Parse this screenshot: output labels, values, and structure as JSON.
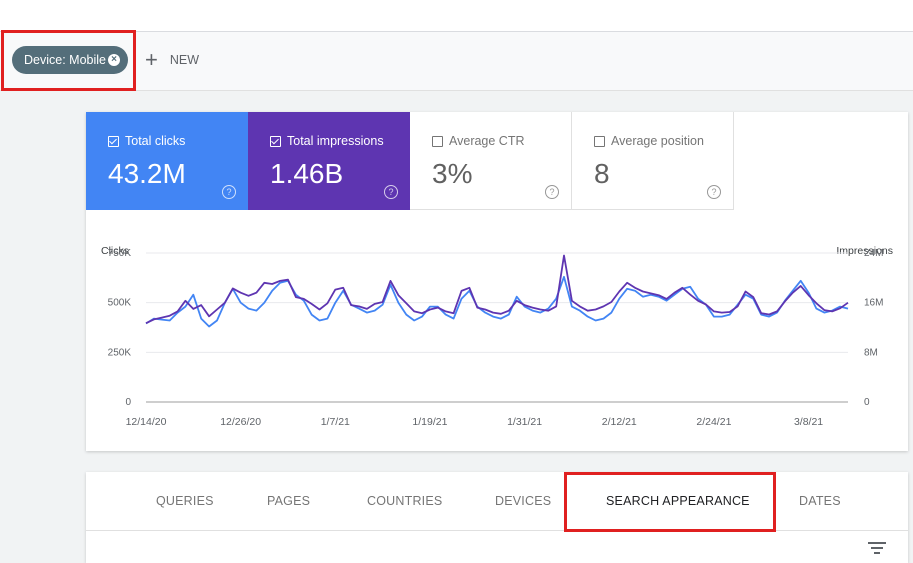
{
  "filter_chip": {
    "label": "Device: Mobile"
  },
  "new_button": {
    "label": "NEW"
  },
  "metrics": [
    {
      "label": "Total clicks",
      "value": "43.2M",
      "checked": true
    },
    {
      "label": "Total impressions",
      "value": "1.46B",
      "checked": true
    },
    {
      "label": "Average CTR",
      "value": "3%",
      "checked": false
    },
    {
      "label": "Average position",
      "value": "8",
      "checked": false
    }
  ],
  "colors": {
    "clicks": "#4285f4",
    "impressions": "#5e35b1",
    "highlight": "#e02020",
    "chip": "#546e7a"
  },
  "chart_data": {
    "type": "line",
    "left_axis": {
      "title": "Clicks",
      "ticks": [
        "750K",
        "500K",
        "250K",
        "0"
      ],
      "range": [
        0,
        750000
      ]
    },
    "right_axis": {
      "title": "Impressions",
      "ticks": [
        "24M",
        "16M",
        "8M",
        "0"
      ],
      "range": [
        0,
        24000000
      ]
    },
    "x_labels": [
      "12/14/20",
      "12/26/20",
      "1/7/21",
      "1/19/21",
      "1/31/21",
      "2/12/21",
      "2/24/21",
      "3/8/21"
    ],
    "x": [
      "12/14/20",
      "12/15/20",
      "12/16/20",
      "12/17/20",
      "12/18/20",
      "12/19/20",
      "12/20/20",
      "12/21/20",
      "12/22/20",
      "12/23/20",
      "12/24/20",
      "12/25/20",
      "12/26/20",
      "12/27/20",
      "12/28/20",
      "12/29/20",
      "12/30/20",
      "12/31/20",
      "1/1/21",
      "1/2/21",
      "1/3/21",
      "1/4/21",
      "1/5/21",
      "1/6/21",
      "1/7/21",
      "1/8/21",
      "1/9/21",
      "1/10/21",
      "1/11/21",
      "1/12/21",
      "1/13/21",
      "1/14/21",
      "1/15/21",
      "1/16/21",
      "1/17/21",
      "1/18/21",
      "1/19/21",
      "1/20/21",
      "1/21/21",
      "1/22/21",
      "1/23/21",
      "1/24/21",
      "1/25/21",
      "1/26/21",
      "1/27/21",
      "1/28/21",
      "1/29/21",
      "1/30/21",
      "1/31/21",
      "2/1/21",
      "2/2/21",
      "2/3/21",
      "2/4/21",
      "2/5/21",
      "2/6/21",
      "2/7/21",
      "2/8/21",
      "2/9/21",
      "2/10/21",
      "2/11/21",
      "2/12/21",
      "2/13/21",
      "2/14/21",
      "2/15/21",
      "2/16/21",
      "2/17/21",
      "2/18/21",
      "2/19/21",
      "2/20/21",
      "2/21/21",
      "2/22/21",
      "2/23/21",
      "2/24/21",
      "2/25/21",
      "2/26/21",
      "2/27/21",
      "2/28/21",
      "3/1/21",
      "3/2/21",
      "3/3/21",
      "3/4/21",
      "3/5/21",
      "3/6/21",
      "3/7/21",
      "3/8/21",
      "3/9/21",
      "3/10/21",
      "3/11/21",
      "3/12/21",
      "3/13/21"
    ],
    "series": [
      {
        "name": "Total clicks",
        "axis": "left",
        "values": [
          395000,
          420000,
          415000,
          410000,
          450000,
          480000,
          540000,
          420000,
          380000,
          410000,
          500000,
          570000,
          500000,
          470000,
          460000,
          500000,
          560000,
          600000,
          610000,
          540000,
          510000,
          440000,
          410000,
          420000,
          500000,
          560000,
          490000,
          470000,
          450000,
          460000,
          490000,
          590000,
          500000,
          440000,
          410000,
          430000,
          480000,
          480000,
          440000,
          420000,
          520000,
          560000,
          480000,
          450000,
          430000,
          420000,
          440000,
          530000,
          480000,
          460000,
          450000,
          470000,
          520000,
          630000,
          480000,
          460000,
          430000,
          410000,
          420000,
          450000,
          520000,
          570000,
          560000,
          530000,
          540000,
          530000,
          510000,
          540000,
          570000,
          580000,
          520000,
          490000,
          430000,
          430000,
          440000,
          490000,
          540000,
          520000,
          440000,
          430000,
          450000,
          510000,
          560000,
          610000,
          550000,
          470000,
          450000,
          460000,
          480000,
          470000
        ]
      },
      {
        "name": "Total impressions",
        "axis": "right",
        "values": [
          12700000,
          13300000,
          13600000,
          13900000,
          14600000,
          16300000,
          15000000,
          15600000,
          13800000,
          14900000,
          16000000,
          18300000,
          17600000,
          17100000,
          17600000,
          19200000,
          19000000,
          19500000,
          19700000,
          16900000,
          16600000,
          15800000,
          14900000,
          15900000,
          18100000,
          18400000,
          15600000,
          15400000,
          15000000,
          15800000,
          16100000,
          19500000,
          17200000,
          15900000,
          14600000,
          14300000,
          14900000,
          15200000,
          14600000,
          14300000,
          17900000,
          18400000,
          15200000,
          14900000,
          14400000,
          14200000,
          14700000,
          16300000,
          15600000,
          15200000,
          14900000,
          14700000,
          15400000,
          23600000,
          16300000,
          15400000,
          14700000,
          14900000,
          15400000,
          16100000,
          17800000,
          19200000,
          18400000,
          17800000,
          17500000,
          17200000,
          16600000,
          17600000,
          18400000,
          17300000,
          16300000,
          15700000,
          14600000,
          14400000,
          14500000,
          15400000,
          17800000,
          16900000,
          14300000,
          14100000,
          14600000,
          16200000,
          17600000,
          18700000,
          17200000,
          15900000,
          14800000,
          14600000,
          15100000,
          16000000
        ]
      }
    ]
  },
  "tabs": [
    {
      "label": "QUERIES",
      "active": false
    },
    {
      "label": "PAGES",
      "active": false
    },
    {
      "label": "COUNTRIES",
      "active": false
    },
    {
      "label": "DEVICES",
      "active": false
    },
    {
      "label": "SEARCH APPEARANCE",
      "active": true
    },
    {
      "label": "DATES",
      "active": false
    }
  ]
}
